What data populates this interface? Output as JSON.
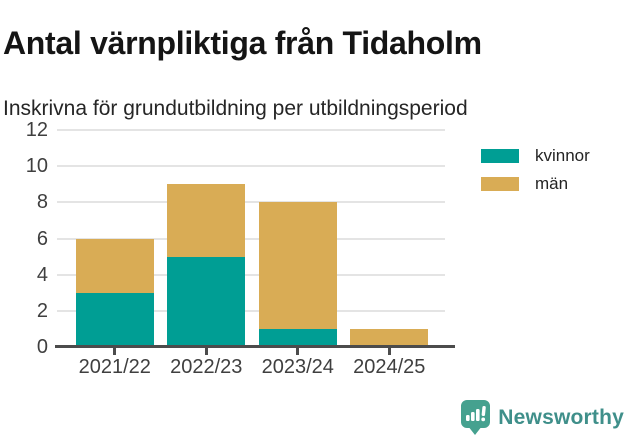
{
  "header": {
    "title": "Antal värnpliktiga från Tidaholm",
    "subtitle": "Inskrivna för grundutbildning per utbildningsperiod"
  },
  "chart_data": {
    "type": "bar",
    "stacked": true,
    "categories": [
      "2021/22",
      "2022/23",
      "2023/24",
      "2024/25"
    ],
    "series": [
      {
        "name": "kvinnor",
        "color": "#009e94",
        "values": [
          3,
          5,
          1,
          0
        ]
      },
      {
        "name": "män",
        "color": "#d9ac55",
        "values": [
          3,
          4,
          7,
          1
        ]
      }
    ],
    "totals": [
      6,
      9,
      8,
      1
    ],
    "title": "Antal värnpliktiga från Tidaholm",
    "subtitle": "Inskrivna för grundutbildning per utbildningsperiod",
    "xlabel": "",
    "ylabel": "",
    "ylim": [
      0,
      12
    ],
    "yticks": [
      0,
      2,
      4,
      6,
      8,
      10,
      12
    ],
    "grid": true,
    "legend_position": "right"
  },
  "footer": {
    "brand": "Newsworthy",
    "logo_icon": "newsworthy-pin-barchart-icon",
    "brand_color": "#3f8f8a",
    "icon_color": "#45a18f"
  }
}
